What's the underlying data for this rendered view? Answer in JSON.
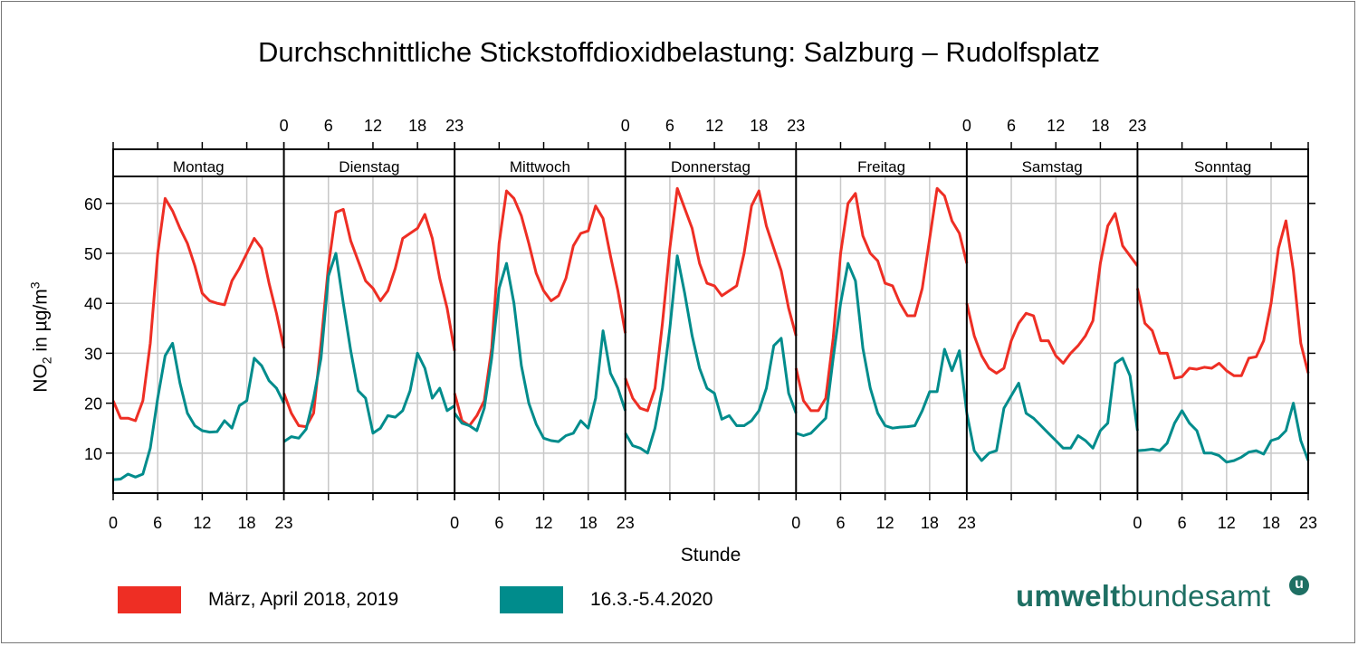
{
  "chart_data": {
    "type": "line",
    "title": "Durchschnittliche Stickstoffdioxidbelastung: Salzburg – Rudolfsplatz",
    "xlabel": "Stunde",
    "ylabel": "NO2 in µg/m3",
    "ylabel_main": "NO",
    "ylabel_sub": "2",
    "ylabel_rest": " in µg/m",
    "ylabel_sup": "3",
    "ylim": [
      2,
      65.4
    ],
    "yticks": [
      10,
      20,
      30,
      40,
      50,
      60
    ],
    "xticks": [
      0,
      6,
      12,
      18,
      23
    ],
    "grid": true,
    "panels": [
      "Montag",
      "Dienstag",
      "Mittwoch",
      "Donnerstag",
      "Freitag",
      "Samstag",
      "Sonntag"
    ],
    "legend_placement": "bottom",
    "series": [
      {
        "name": "März, April 2018, 2019",
        "color": "#ee2e24",
        "values": [
          [
            20.5,
            17,
            17,
            16.5,
            20.5,
            32,
            50,
            61,
            58.5,
            55,
            52,
            47.5,
            42,
            40.5,
            40,
            39.7,
            44.5,
            47,
            50,
            53,
            51,
            44,
            38,
            31
          ],
          [
            22,
            18,
            15.5,
            15.3,
            18,
            32,
            47.5,
            58.2,
            58.8,
            52.5,
            48.5,
            44.5,
            43,
            40.5,
            42.5,
            47,
            53,
            54,
            55,
            57.8,
            53,
            45,
            39,
            30.5
          ],
          [
            22,
            16.5,
            15.5,
            17.5,
            20.5,
            31,
            52,
            62.5,
            61,
            57.5,
            52,
            46,
            42.5,
            40.5,
            41.5,
            45,
            51.5,
            54,
            54.5,
            59.5,
            57,
            49.5,
            42.5,
            34
          ],
          [
            25,
            21,
            19,
            18.5,
            23,
            36,
            51,
            63,
            59,
            55,
            48,
            44,
            43.5,
            41.5,
            42.5,
            43.5,
            50,
            59.5,
            62.5,
            55.5,
            51,
            46.5,
            39,
            33.5
          ],
          [
            27,
            20.5,
            18.5,
            18.5,
            21,
            33,
            50,
            60,
            62,
            53.5,
            50,
            48.5,
            44,
            43.5,
            40,
            37.5,
            37.5,
            43,
            53,
            63,
            61.5,
            56.5,
            54,
            48
          ],
          [
            40,
            33.5,
            29.5,
            27,
            26,
            27,
            32.5,
            36,
            38,
            37.5,
            32.5,
            32.5,
            29.5,
            28,
            30,
            31.5,
            33.5,
            36.5,
            48,
            55.5,
            58,
            51.5,
            49.5,
            47.5
          ],
          [
            43,
            36,
            34.5,
            30,
            30,
            25,
            25.3,
            27,
            26.8,
            27.2,
            27,
            28,
            26.5,
            25.5,
            25.5,
            29,
            29.3,
            32.5,
            40,
            51,
            56.5,
            46.5,
            32,
            26
          ]
        ]
      },
      {
        "name": "16.3.-5.4.2020",
        "color": "#008c8c",
        "values": [
          [
            4.7,
            4.8,
            5.8,
            5.2,
            5.8,
            11,
            21,
            29.5,
            32,
            24,
            18,
            15.5,
            14.5,
            14.2,
            14.3,
            16.5,
            15,
            19.5,
            20.5,
            29,
            27.5,
            24.5,
            23,
            20
          ],
          [
            12.3,
            13.3,
            13,
            14.8,
            21,
            29,
            45.5,
            50,
            40,
            30.5,
            22.5,
            21,
            14,
            15,
            17.5,
            17.2,
            18.5,
            22.5,
            30,
            27,
            21,
            23,
            18.5,
            19.5
          ],
          [
            18,
            16,
            15.5,
            14.5,
            19,
            29,
            43,
            48,
            40,
            27.5,
            20,
            15.8,
            13,
            12.5,
            12.3,
            13.5,
            14,
            16.5,
            15,
            21,
            34.5,
            26,
            23,
            18.5
          ],
          [
            14,
            11.5,
            11,
            10,
            15,
            23,
            35,
            49.5,
            42,
            33.5,
            27,
            23,
            22,
            16.8,
            17.5,
            15.5,
            15.5,
            16.5,
            18.5,
            23,
            31.5,
            33,
            22,
            18
          ],
          [
            14,
            13.5,
            14,
            15.5,
            17,
            29,
            40,
            48,
            44.5,
            31,
            23,
            18,
            15.5,
            15,
            15.2,
            15.3,
            15.5,
            18.5,
            22.3,
            22.3,
            30.8,
            26.5,
            30.5,
            18
          ],
          [
            18,
            10.5,
            8.5,
            10,
            10.5,
            19,
            21.5,
            24,
            18,
            17,
            15.5,
            14,
            12.5,
            11,
            11,
            13.5,
            12.5,
            11,
            14.5,
            16,
            28,
            29,
            25.5,
            14.5
          ],
          [
            10.5,
            10.6,
            10.8,
            10.5,
            12,
            16,
            18.5,
            16,
            14.5,
            10,
            10,
            9.5,
            8.2,
            8.5,
            9.2,
            10.2,
            10.5,
            9.8,
            12.5,
            13,
            14.5,
            20,
            12.5,
            8.5
          ]
        ]
      }
    ]
  },
  "logo": {
    "bold": "umwelt",
    "regular": "bundesamt",
    "badge": "u"
  }
}
